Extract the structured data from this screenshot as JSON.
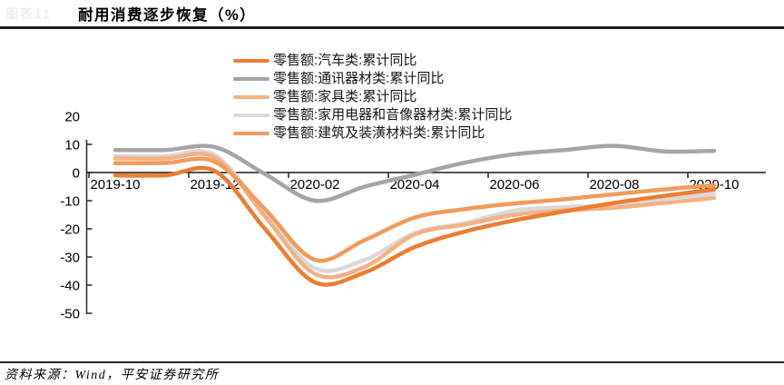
{
  "figure": {
    "faint_header_label": "图表11",
    "title": "耐用消费逐步恢复（%）",
    "source": "资料来源：Wind，平安证券研究所"
  },
  "chart_data": {
    "type": "line",
    "title": "耐用消费逐步恢复（%）",
    "unit": "%",
    "x": [
      "2019-10",
      "2019-11",
      "2019-12",
      "2020-01",
      "2020-02",
      "2020-03",
      "2020-04",
      "2020-05",
      "2020-06",
      "2020-07",
      "2020-08",
      "2020-09",
      "2020-10"
    ],
    "x_tick_labels": [
      "2019-10",
      "2019-12",
      "2020-02",
      "2020-04",
      "2020-06",
      "2020-08",
      "2020-10"
    ],
    "y_ticks": [
      20,
      10,
      0,
      -10,
      -20,
      -30,
      -40,
      -50
    ],
    "ylim": [
      -50,
      20
    ],
    "grid": false,
    "smoothed": true,
    "legend_position": "top-center",
    "series": [
      {
        "name": "零售额:汽车类:累计同比",
        "color": "#ED7D31",
        "values": [
          -1,
          -1,
          0.5,
          -20,
          -39,
          -35.5,
          -26.5,
          -21,
          -17,
          -13.8,
          -10.8,
          -8.3,
          -6
        ]
      },
      {
        "name": "零售额:通讯器材类:累计同比",
        "color": "#A5A5A5",
        "values": [
          8,
          8,
          9,
          -0.5,
          -10,
          -5,
          -0.8,
          3.5,
          6.5,
          8,
          9.5,
          7.5,
          7.7
        ]
      },
      {
        "name": "零售额:家具类:累计同比",
        "color": "#F4B183",
        "values": [
          5,
          5,
          5.3,
          -15.5,
          -36,
          -33.5,
          -22,
          -18.5,
          -15,
          -13.5,
          -12.5,
          -10.8,
          -9
        ]
      },
      {
        "name": "零售额:家用电器和音像器材类:累计同比",
        "color": "#D9D9D9",
        "values": [
          5.8,
          5.8,
          6.2,
          -14.5,
          -34,
          -31,
          -21.5,
          -18,
          -13.5,
          -12.3,
          -11.5,
          -9.3,
          -7.5
        ]
      },
      {
        "name": "零售额:建筑及装潢材料类:累计同比",
        "color": "#F19B5C",
        "values": [
          3.3,
          3.4,
          3.8,
          -13,
          -31,
          -24,
          -16,
          -13,
          -11,
          -9.5,
          -7.7,
          -6,
          -4.5
        ]
      }
    ],
    "draw_order": [
      1,
      3,
      2,
      4,
      0
    ]
  }
}
